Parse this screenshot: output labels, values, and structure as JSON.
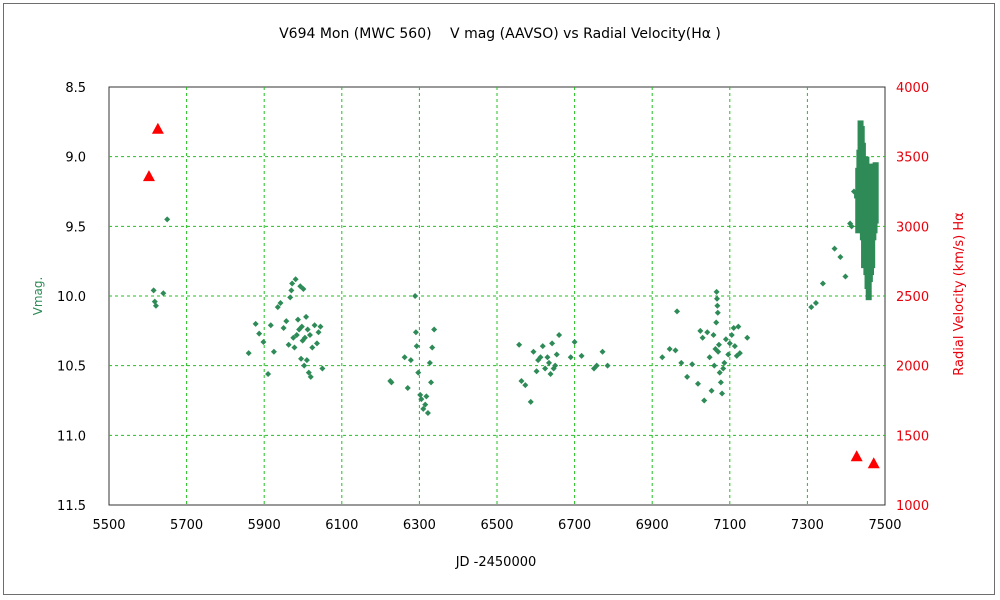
{
  "chart_data": {
    "type": "scatter",
    "title": "V694 Mon (MWC 560)　 V mag (AAVSO)  vs  Radial Velocity(Hα )",
    "xlabel": "JD -2450000",
    "ylabel": "Vmag.",
    "y2label": "Radial Velocity (km/s)  Hα",
    "xlim": [
      5500,
      7500
    ],
    "ylim": [
      8.5,
      11.5
    ],
    "y_inverted": true,
    "y2lim": [
      1000,
      4000
    ],
    "x_ticks": [
      5500,
      5700,
      5900,
      6100,
      6300,
      6500,
      6700,
      6900,
      7100,
      7300,
      7500
    ],
    "x_tick_labels": [
      "5500",
      "5700",
      "5900",
      "6100",
      "6300",
      "6500",
      "6700",
      "6900",
      "7100",
      "7300",
      "7500"
    ],
    "y_ticks": [
      8.5,
      9.0,
      9.5,
      10.0,
      10.5,
      11.0,
      11.5
    ],
    "y_tick_labels": [
      "8.5",
      "9.0",
      "9.5",
      "10.0",
      "10.5",
      "11.0",
      "11.5"
    ],
    "y2_ticks": [
      1000,
      1500,
      2000,
      2500,
      3000,
      3500,
      4000
    ],
    "y2_tick_labels": [
      "1000",
      "1500",
      "2000",
      "2500",
      "3000",
      "3500",
      "4000"
    ],
    "grid": true,
    "colors": {
      "vmag": "#2e8b57",
      "rv": "#ff0000",
      "grid": "#22c022",
      "right_axis_text": "#e8000b"
    },
    "series": [
      {
        "axis": "left",
        "marker": "diamond",
        "points": [
          [
            5615,
            9.96
          ],
          [
            5618,
            10.04
          ],
          [
            5621,
            10.07
          ],
          [
            5640,
            9.98
          ],
          [
            5650,
            9.45
          ],
          [
            5860,
            10.41
          ],
          [
            5878,
            10.2
          ],
          [
            5887,
            10.27
          ],
          [
            5898,
            10.33
          ],
          [
            5910,
            10.56
          ],
          [
            5917,
            10.21
          ],
          [
            5925,
            10.4
          ],
          [
            5935,
            10.08
          ],
          [
            5942,
            10.05
          ],
          [
            5950,
            10.23
          ],
          [
            5957,
            10.18
          ],
          [
            5963,
            10.35
          ],
          [
            5967,
            10.01
          ],
          [
            5970,
            9.96
          ],
          [
            5972,
            9.91
          ],
          [
            5975,
            10.3
          ],
          [
            5978,
            10.37
          ],
          [
            5981,
            9.88
          ],
          [
            5984,
            10.28
          ],
          [
            5987,
            10.17
          ],
          [
            5990,
            10.24
          ],
          [
            5993,
            9.93
          ],
          [
            5995,
            10.45
          ],
          [
            5997,
            10.22
          ],
          [
            5999,
            10.32
          ],
          [
            6001,
            9.95
          ],
          [
            6003,
            10.5
          ],
          [
            6005,
            10.3
          ],
          [
            6008,
            10.15
          ],
          [
            6010,
            10.46
          ],
          [
            6012,
            10.24
          ],
          [
            6015,
            10.55
          ],
          [
            6018,
            10.28
          ],
          [
            6020,
            10.58
          ],
          [
            6024,
            10.37
          ],
          [
            6030,
            10.21
          ],
          [
            6036,
            10.34
          ],
          [
            6040,
            10.26
          ],
          [
            6045,
            10.22
          ],
          [
            6050,
            10.52
          ],
          [
            6225,
            10.61
          ],
          [
            6228,
            10.62
          ],
          [
            6262,
            10.44
          ],
          [
            6270,
            10.66
          ],
          [
            6278,
            10.46
          ],
          [
            6289,
            10.0
          ],
          [
            6291,
            10.26
          ],
          [
            6293,
            10.36
          ],
          [
            6297,
            10.55
          ],
          [
            6302,
            10.71
          ],
          [
            6305,
            10.74
          ],
          [
            6310,
            10.81
          ],
          [
            6315,
            10.78
          ],
          [
            6318,
            10.72
          ],
          [
            6322,
            10.84
          ],
          [
            6327,
            10.48
          ],
          [
            6330,
            10.62
          ],
          [
            6333,
            10.37
          ],
          [
            6338,
            10.24
          ],
          [
            6557,
            10.35
          ],
          [
            6563,
            10.61
          ],
          [
            6573,
            10.64
          ],
          [
            6587,
            10.76
          ],
          [
            6594,
            10.4
          ],
          [
            6602,
            10.54
          ],
          [
            6606,
            10.46
          ],
          [
            6612,
            10.44
          ],
          [
            6618,
            10.36
          ],
          [
            6624,
            10.52
          ],
          [
            6630,
            10.44
          ],
          [
            6634,
            10.48
          ],
          [
            6638,
            10.56
          ],
          [
            6642,
            10.34
          ],
          [
            6646,
            10.52
          ],
          [
            6650,
            10.5
          ],
          [
            6654,
            10.42
          ],
          [
            6660,
            10.28
          ],
          [
            6690,
            10.44
          ],
          [
            6700,
            10.33
          ],
          [
            6718,
            10.43
          ],
          [
            6750,
            10.52
          ],
          [
            6757,
            10.5
          ],
          [
            6772,
            10.4
          ],
          [
            6785,
            10.5
          ],
          [
            6926,
            10.44
          ],
          [
            6945,
            10.38
          ],
          [
            6960,
            10.39
          ],
          [
            6964,
            10.11
          ],
          [
            6975,
            10.48
          ],
          [
            6990,
            10.58
          ],
          [
            7003,
            10.49
          ],
          [
            7018,
            10.63
          ],
          [
            7024,
            10.25
          ],
          [
            7030,
            10.3
          ],
          [
            7034,
            10.75
          ],
          [
            7042,
            10.26
          ],
          [
            7048,
            10.44
          ],
          [
            7053,
            10.68
          ],
          [
            7058,
            10.28
          ],
          [
            7060,
            10.5
          ],
          [
            7063,
            10.38
          ],
          [
            7065,
            10.19
          ],
          [
            7066,
            9.97
          ],
          [
            7067,
            10.02
          ],
          [
            7068,
            10.07
          ],
          [
            7069,
            10.12
          ],
          [
            7070,
            10.4
          ],
          [
            7072,
            10.35
          ],
          [
            7074,
            10.55
          ],
          [
            7077,
            10.62
          ],
          [
            7080,
            10.7
          ],
          [
            7083,
            10.52
          ],
          [
            7086,
            10.48
          ],
          [
            7090,
            10.31
          ],
          [
            7096,
            10.42
          ],
          [
            7100,
            10.34
          ],
          [
            7105,
            10.28
          ],
          [
            7110,
            10.23
          ],
          [
            7113,
            10.36
          ],
          [
            7118,
            10.43
          ],
          [
            7122,
            10.22
          ],
          [
            7126,
            10.41
          ],
          [
            7145,
            10.3
          ],
          [
            7310,
            10.08
          ],
          [
            7322,
            10.05
          ],
          [
            7340,
            9.91
          ],
          [
            7370,
            9.66
          ],
          [
            7385,
            9.72
          ],
          [
            7398,
            9.86
          ],
          [
            7410,
            9.48
          ],
          [
            7414,
            9.5
          ],
          [
            7420,
            9.25
          ]
        ],
        "bands": [
          [
            7428,
            9.25,
            9.3
          ],
          [
            7431,
            9.08,
            9.55
          ],
          [
            7434,
            8.95,
            9.4
          ],
          [
            7437,
            8.74,
            9.35
          ],
          [
            7440,
            8.78,
            9.35
          ],
          [
            7443,
            8.9,
            9.6
          ],
          [
            7446,
            9.0,
            9.8
          ],
          [
            7449,
            9.1,
            9.75
          ],
          [
            7452,
            9.0,
            9.85
          ],
          [
            7455,
            9.15,
            9.95
          ],
          [
            7458,
            9.15,
            10.03
          ],
          [
            7461,
            9.15,
            9.9
          ],
          [
            7464,
            9.05,
            9.85
          ],
          [
            7467,
            9.1,
            9.8
          ],
          [
            7470,
            9.2,
            9.6
          ],
          [
            7473,
            9.05,
            9.55
          ],
          [
            7476,
            9.04,
            9.48
          ]
        ]
      },
      {
        "axis": "right",
        "marker": "triangle",
        "points": [
          [
            5603,
            3360
          ],
          [
            5626,
            3700
          ],
          [
            7427,
            1350
          ],
          [
            7471,
            1300
          ]
        ]
      }
    ]
  }
}
